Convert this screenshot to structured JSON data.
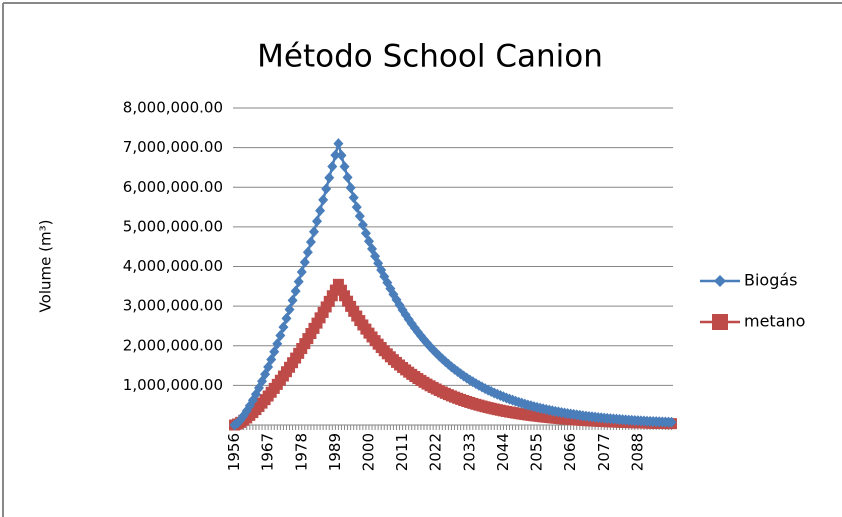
{
  "chart_data": {
    "type": "line",
    "title": "Método School Canion",
    "y_label": "Volume (m³)",
    "categories": [
      "1956",
      null,
      null,
      null,
      null,
      null,
      null,
      null,
      null,
      null,
      null,
      "1967",
      null,
      null,
      null,
      null,
      null,
      null,
      null,
      null,
      null,
      null,
      "1978",
      null,
      null,
      null,
      null,
      null,
      null,
      null,
      null,
      null,
      null,
      "1989",
      null,
      null,
      null,
      null,
      null,
      null,
      null,
      null,
      null,
      null,
      "2000",
      null,
      null,
      null,
      null,
      null,
      null,
      null,
      null,
      null,
      null,
      "2011",
      null,
      null,
      null,
      null,
      null,
      null,
      null,
      null,
      null,
      null,
      "2022",
      null,
      null,
      null,
      null,
      null,
      null,
      null,
      null,
      null,
      null,
      "2033",
      null,
      null,
      null,
      null,
      null,
      null,
      null,
      null,
      null,
      null,
      "2044",
      null,
      null,
      null,
      null,
      null,
      null,
      null,
      null,
      null,
      null,
      "2055",
      null,
      null,
      null,
      null,
      null,
      null,
      null,
      null,
      null,
      null,
      "2066",
      null,
      null,
      null,
      null,
      null,
      null,
      null,
      null,
      null,
      null,
      "2077",
      null,
      null,
      null,
      null,
      null,
      null,
      null,
      null,
      null,
      null,
      "2088",
      null,
      null,
      null,
      null,
      null,
      null,
      null,
      null,
      null,
      null,
      null
    ],
    "series": [
      {
        "name": "Biogás",
        "color": "#4a7ebb",
        "marker": "diamond",
        "values": [
          0,
          51000,
          134000,
          237000,
          355000,
          485000,
          626000,
          777000,
          936000,
          1104000,
          1280000,
          1463000,
          1652000,
          1848000,
          2050000,
          2258000,
          2471000,
          2690000,
          2914000,
          3144000,
          3378000,
          3617000,
          3860000,
          4108000,
          4360000,
          4617000,
          4876000,
          5142000,
          5409000,
          5682000,
          5959000,
          6239000,
          6523000,
          6810000,
          7100000,
          6804000,
          6520000,
          6248000,
          5988000,
          5738000,
          5499000,
          5270000,
          5050000,
          4839000,
          4637000,
          4444000,
          4259000,
          4081000,
          3911000,
          3748000,
          3592000,
          3442000,
          3298000,
          3161000,
          3029000,
          2903000,
          2782000,
          2666000,
          2555000,
          2448000,
          2346000,
          2248000,
          2154000,
          2065000,
          1979000,
          1896000,
          1817000,
          1741000,
          1669000,
          1599000,
          1532000,
          1468000,
          1407000,
          1349000,
          1292000,
          1238000,
          1187000,
          1137000,
          1090000,
          1044000,
          1001000,
          959000,
          919000,
          881000,
          844000,
          809000,
          775000,
          743000,
          712000,
          682000,
          654000,
          627000,
          600000,
          575000,
          551000,
          528000,
          506000,
          485000,
          465000,
          446000,
          427000,
          409000,
          392000,
          376000,
          360000,
          345000,
          331000,
          317000,
          304000,
          291000,
          279000,
          267000,
          256000,
          245000,
          235000,
          225000,
          216000,
          207000,
          198000,
          190000,
          182000,
          175000,
          167000,
          160000,
          154000,
          147000,
          141000,
          135000,
          130000,
          124000,
          119000,
          114000,
          109000,
          105000,
          100000,
          96000,
          92000,
          88000,
          85000,
          81000,
          78000,
          75000,
          71000,
          68000
        ]
      },
      {
        "name": "metano",
        "color": "#be4b48",
        "marker": "square",
        "values": [
          0,
          25500,
          67000,
          118500,
          177500,
          242500,
          313000,
          388500,
          468000,
          552000,
          640000,
          731500,
          826000,
          924000,
          1025000,
          1129000,
          1235500,
          1345000,
          1457000,
          1572000,
          1689000,
          1808500,
          1930000,
          2054000,
          2180000,
          2308500,
          2438000,
          2571000,
          2704500,
          2841000,
          2979500,
          3119500,
          3261500,
          3405000,
          3550000,
          3402000,
          3260000,
          3124000,
          2994000,
          2869000,
          2749500,
          2635000,
          2525000,
          2419500,
          2318500,
          2222000,
          2129500,
          2040500,
          1955500,
          1874000,
          1796000,
          1721000,
          1649000,
          1580500,
          1514500,
          1451500,
          1391000,
          1333000,
          1277500,
          1224000,
          1173000,
          1124000,
          1077000,
          1032500,
          989500,
          948000,
          908500,
          870500,
          834500,
          799500,
          766000,
          734000,
          703500,
          674500,
          646000,
          619000,
          593500,
          568500,
          545000,
          522000,
          500500,
          479500,
          459500,
          440500,
          422000,
          404500,
          387500,
          371500,
          356000,
          341000,
          327000,
          313500,
          300000,
          287500,
          275500,
          264000,
          253000,
          242500,
          232500,
          223000,
          213500,
          204500,
          196000,
          188000,
          180000,
          172500,
          165500,
          158500,
          152000,
          145500,
          139500,
          133500,
          128000,
          122500,
          117500,
          112500,
          108000,
          103500,
          99000,
          95000,
          91000,
          87500,
          83500,
          80000,
          77000,
          73500,
          70500,
          67500,
          65000,
          62000,
          59500,
          57000,
          54500,
          52500,
          50000,
          48000,
          46000,
          44000,
          42500,
          40500,
          39000,
          37500,
          35500,
          34000
        ]
      }
    ],
    "ylim": [
      0,
      8000000
    ],
    "yticks": [
      {
        "value": 1000000,
        "label": "1,000,000.00"
      },
      {
        "value": 2000000,
        "label": "2,000,000.00"
      },
      {
        "value": 3000000,
        "label": "3,000,000.00"
      },
      {
        "value": 4000000,
        "label": "4,000,000.00"
      },
      {
        "value": 5000000,
        "label": "5,000,000.00"
      },
      {
        "value": 6000000,
        "label": "6,000,000.00"
      },
      {
        "value": 7000000,
        "label": "7,000,000.00"
      },
      {
        "value": 8000000,
        "label": "8,000,000.00"
      }
    ],
    "grid": true,
    "legend": "right"
  }
}
